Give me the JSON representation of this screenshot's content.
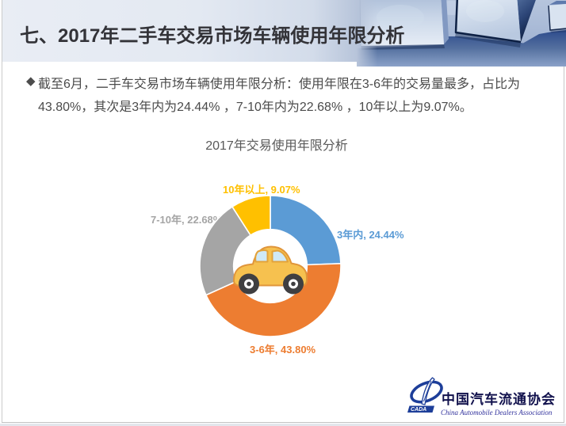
{
  "header": {
    "title": "七、2017年二手车交易市场车辆使用年限分析"
  },
  "body": {
    "bullet_symbol": "◆",
    "line1": "截至6月，二手车交易市场车辆使用年限分析：使用年限在3-6年的交易量最多，占比为",
    "line2": "43.80%，其次是3年内为24.44% ，7-10年内为22.68% ，10年以上为9.07%。"
  },
  "chart_data": {
    "type": "pie",
    "subtype": "donut",
    "title": "2017年交易使用年限分析",
    "categories": [
      "3年内",
      "3-6年",
      "7-10年",
      "10年以上"
    ],
    "values": [
      24.44,
      43.8,
      22.68,
      9.07
    ],
    "unit": "%",
    "colors": [
      "#5B9BD5",
      "#ED7D31",
      "#A5A5A5",
      "#FFC000"
    ],
    "labels": [
      "3年内, 24.44%",
      "3-6年, 43.80%",
      "7-10年, 22.68%",
      "10年以上, 9.07%"
    ],
    "start_angle_deg": 0,
    "direction": "clockwise",
    "inner_radius_ratio": 0.52,
    "legend": "none",
    "center_image": "yellow-cartoon-car"
  },
  "footer": {
    "logo_acronym": "CADA",
    "org_cn": "中国汽车流通协会",
    "org_en": "China Automobile Dealers Association"
  }
}
